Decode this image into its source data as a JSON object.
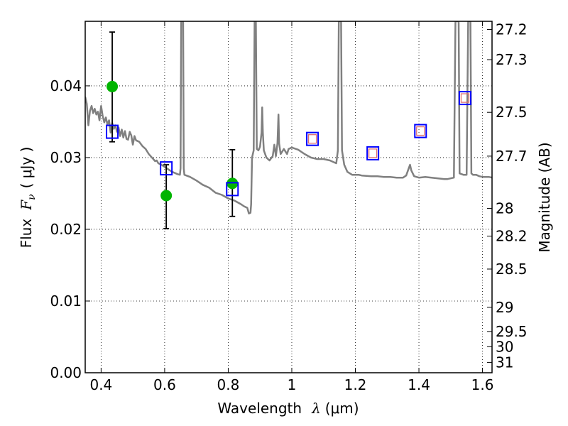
{
  "chart_data": {
    "type": "scatter",
    "title": "",
    "xlabel": {
      "prefix": "Wavelength",
      "symbol": "λ",
      "unit": "(μm)"
    },
    "ylabel": {
      "prefix": "Flux",
      "symbol": "F",
      "subscript": "ν",
      "unit": "( μJy )"
    },
    "y2label": "Magnitude (AB)",
    "xlim": [
      0.35,
      1.63
    ],
    "ylim": [
      0.0,
      0.049
    ],
    "grid": true,
    "x_ticks": [
      {
        "value": 0.4,
        "label": "0.4"
      },
      {
        "value": 0.6,
        "label": "0.6"
      },
      {
        "value": 0.8,
        "label": "0.8"
      },
      {
        "value": 1.0,
        "label": "1"
      },
      {
        "value": 1.2,
        "label": "1.2"
      },
      {
        "value": 1.4,
        "label": "1.4"
      },
      {
        "value": 1.6,
        "label": "1.6"
      }
    ],
    "y_ticks": [
      {
        "value": 0.0,
        "label": "0.00"
      },
      {
        "value": 0.01,
        "label": "0.01"
      },
      {
        "value": 0.02,
        "label": "0.02"
      },
      {
        "value": 0.03,
        "label": "0.03"
      },
      {
        "value": 0.04,
        "label": "0.04"
      }
    ],
    "y2_ticks": [
      {
        "value": 27.2,
        "label": "27.2"
      },
      {
        "value": 27.3,
        "label": "27.3"
      },
      {
        "value": 27.5,
        "label": "27.5"
      },
      {
        "value": 27.7,
        "label": "27.7"
      },
      {
        "value": 28.0,
        "label": "28"
      },
      {
        "value": 28.2,
        "label": "28.2"
      },
      {
        "value": 28.5,
        "label": "28.5"
      },
      {
        "value": 29.0,
        "label": "29"
      },
      {
        "value": 29.5,
        "label": "29.5"
      },
      {
        "value": 30.0,
        "label": "30"
      },
      {
        "value": 31.0,
        "label": "31"
      }
    ],
    "series": [
      {
        "kind": "line",
        "color": "#808080",
        "points": [
          [
            0.35,
            0.0385
          ],
          [
            0.355,
            0.0375
          ],
          [
            0.36,
            0.0345
          ],
          [
            0.365,
            0.0365
          ],
          [
            0.37,
            0.0372
          ],
          [
            0.375,
            0.0362
          ],
          [
            0.38,
            0.0368
          ],
          [
            0.385,
            0.036
          ],
          [
            0.39,
            0.0364
          ],
          [
            0.395,
            0.0352
          ],
          [
            0.4,
            0.0372
          ],
          [
            0.405,
            0.0358
          ],
          [
            0.41,
            0.0349
          ],
          [
            0.415,
            0.0356
          ],
          [
            0.42,
            0.0346
          ],
          [
            0.425,
            0.0352
          ],
          [
            0.43,
            0.0335
          ],
          [
            0.435,
            0.0348
          ],
          [
            0.44,
            0.034
          ],
          [
            0.445,
            0.0345
          ],
          [
            0.45,
            0.0336
          ],
          [
            0.455,
            0.0342
          ],
          [
            0.46,
            0.033
          ],
          [
            0.465,
            0.0339
          ],
          [
            0.47,
            0.0328
          ],
          [
            0.475,
            0.0337
          ],
          [
            0.48,
            0.0326
          ],
          [
            0.485,
            0.0325
          ],
          [
            0.49,
            0.0336
          ],
          [
            0.495,
            0.0331
          ],
          [
            0.5,
            0.0318
          ],
          [
            0.505,
            0.033
          ],
          [
            0.51,
            0.0324
          ],
          [
            0.52,
            0.0322
          ],
          [
            0.53,
            0.0316
          ],
          [
            0.54,
            0.0312
          ],
          [
            0.55,
            0.0305
          ],
          [
            0.56,
            0.03
          ],
          [
            0.57,
            0.0295
          ],
          [
            0.575,
            0.0296
          ],
          [
            0.58,
            0.0292
          ],
          [
            0.59,
            0.029
          ],
          [
            0.6,
            0.0287
          ],
          [
            0.61,
            0.0284
          ],
          [
            0.62,
            0.0281
          ],
          [
            0.63,
            0.0279
          ],
          [
            0.64,
            0.0277
          ],
          [
            0.648,
            0.0276
          ],
          [
            0.65,
            0.0285
          ],
          [
            0.652,
            0.049
          ],
          [
            0.658,
            0.049
          ],
          [
            0.66,
            0.0285
          ],
          [
            0.662,
            0.0276
          ],
          [
            0.68,
            0.0273
          ],
          [
            0.7,
            0.0268
          ],
          [
            0.72,
            0.0262
          ],
          [
            0.74,
            0.0258
          ],
          [
            0.76,
            0.0251
          ],
          [
            0.78,
            0.0248
          ],
          [
            0.8,
            0.0243
          ],
          [
            0.82,
            0.024
          ],
          [
            0.84,
            0.0235
          ],
          [
            0.85,
            0.0232
          ],
          [
            0.86,
            0.023
          ],
          [
            0.865,
            0.0222
          ],
          [
            0.87,
            0.0223
          ],
          [
            0.872,
            0.0235
          ],
          [
            0.875,
            0.03
          ],
          [
            0.88,
            0.031
          ],
          [
            0.883,
            0.049
          ],
          [
            0.887,
            0.049
          ],
          [
            0.89,
            0.0312
          ],
          [
            0.895,
            0.031
          ],
          [
            0.9,
            0.0315
          ],
          [
            0.905,
            0.0335
          ],
          [
            0.907,
            0.037
          ],
          [
            0.909,
            0.0335
          ],
          [
            0.912,
            0.031
          ],
          [
            0.92,
            0.03
          ],
          [
            0.93,
            0.0296
          ],
          [
            0.94,
            0.0302
          ],
          [
            0.945,
            0.0318
          ],
          [
            0.95,
            0.0302
          ],
          [
            0.955,
            0.032
          ],
          [
            0.958,
            0.036
          ],
          [
            0.96,
            0.032
          ],
          [
            0.965,
            0.0305
          ],
          [
            0.975,
            0.0312
          ],
          [
            0.985,
            0.0305
          ],
          [
            0.99,
            0.0312
          ],
          [
            1.0,
            0.0314
          ],
          [
            1.02,
            0.0311
          ],
          [
            1.04,
            0.0305
          ],
          [
            1.06,
            0.03
          ],
          [
            1.08,
            0.0298
          ],
          [
            1.1,
            0.0298
          ],
          [
            1.12,
            0.0296
          ],
          [
            1.14,
            0.0292
          ],
          [
            1.145,
            0.031
          ],
          [
            1.148,
            0.049
          ],
          [
            1.155,
            0.049
          ],
          [
            1.158,
            0.031
          ],
          [
            1.165,
            0.029
          ],
          [
            1.175,
            0.028
          ],
          [
            1.19,
            0.0276
          ],
          [
            1.21,
            0.0276
          ],
          [
            1.22,
            0.0275
          ],
          [
            1.25,
            0.0274
          ],
          [
            1.27,
            0.0274
          ],
          [
            1.29,
            0.0273
          ],
          [
            1.31,
            0.0273
          ],
          [
            1.33,
            0.0272
          ],
          [
            1.35,
            0.0272
          ],
          [
            1.36,
            0.0275
          ],
          [
            1.368,
            0.0285
          ],
          [
            1.372,
            0.029
          ],
          [
            1.376,
            0.0282
          ],
          [
            1.385,
            0.0274
          ],
          [
            1.4,
            0.0272
          ],
          [
            1.42,
            0.0273
          ],
          [
            1.44,
            0.0272
          ],
          [
            1.46,
            0.0271
          ],
          [
            1.48,
            0.027
          ],
          [
            1.49,
            0.027
          ],
          [
            1.5,
            0.0271
          ],
          [
            1.51,
            0.0272
          ],
          [
            1.515,
            0.049
          ],
          [
            1.525,
            0.049
          ],
          [
            1.528,
            0.0278
          ],
          [
            1.54,
            0.0276
          ],
          [
            1.55,
            0.0276
          ],
          [
            1.555,
            0.049
          ],
          [
            1.562,
            0.049
          ],
          [
            1.565,
            0.0278
          ],
          [
            1.57,
            0.0276
          ],
          [
            1.58,
            0.0276
          ],
          [
            1.59,
            0.0274
          ],
          [
            1.6,
            0.0273
          ],
          [
            1.61,
            0.0273
          ],
          [
            1.62,
            0.0273
          ],
          [
            1.63,
            0.0272
          ]
        ]
      },
      {
        "kind": "errorbar",
        "color": "#000000",
        "points": [
          {
            "x": 0.435,
            "lo": 0.0322,
            "hi": 0.0475
          },
          {
            "x": 0.605,
            "lo": 0.0201,
            "hi": 0.029
          },
          {
            "x": 0.813,
            "lo": 0.0218,
            "hi": 0.0311
          }
        ]
      },
      {
        "kind": "circle",
        "color": "#00b400",
        "points": [
          [
            0.435,
            0.0399
          ],
          [
            0.605,
            0.0247
          ],
          [
            0.813,
            0.0264
          ]
        ]
      },
      {
        "kind": "square",
        "color": "#0000ff",
        "points": [
          [
            0.435,
            0.0336
          ],
          [
            0.605,
            0.0285
          ],
          [
            0.813,
            0.0256
          ],
          [
            1.065,
            0.0326
          ],
          [
            1.255,
            0.0306
          ],
          [
            1.405,
            0.0337
          ],
          [
            1.545,
            0.0383
          ]
        ]
      },
      {
        "kind": "inner_square",
        "color": "#e07070",
        "points": [
          [
            1.065,
            0.0326
          ],
          [
            1.255,
            0.0306
          ],
          [
            1.405,
            0.0337
          ],
          [
            1.545,
            0.0383
          ]
        ]
      }
    ]
  }
}
